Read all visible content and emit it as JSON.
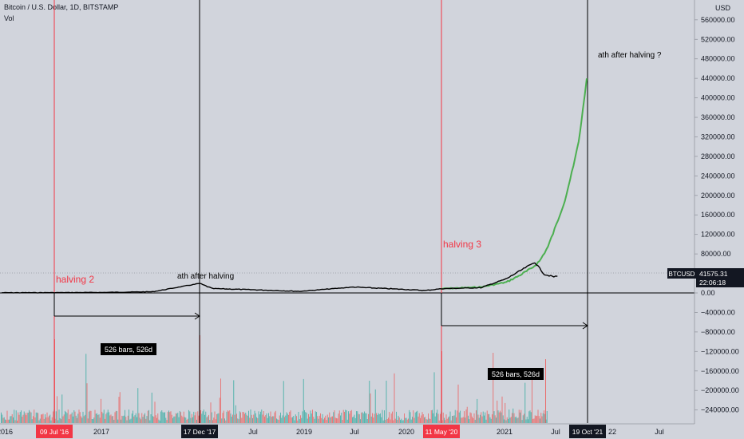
{
  "header": {
    "title": "Bitcoin / U.S. Dollar, 1D, BITSTAMP",
    "indicator": "Vol",
    "currency": "USD"
  },
  "price_label": {
    "symbol": "BTCUSD",
    "price": "41575.31",
    "countdown": "22:06:18"
  },
  "annotations": {
    "halving2": "halving 2",
    "halving3": "halving 3",
    "ath1": "ath after halving",
    "ath2": "ath after halving ?",
    "measure1": "526 bars, 526d",
    "measure2": "526 bars, 526d"
  },
  "x_axis": {
    "ticks": [
      "2016",
      "2017",
      "Jul",
      "2019",
      "Jul",
      "2020",
      "2021",
      "Jul",
      "22",
      "Jul"
    ],
    "highlighted": [
      "09 Jul '16",
      "17 Dec '17",
      "11 May '20",
      "19 Oct '21"
    ]
  },
  "colors": {
    "background": "#d1d4dc",
    "halving_line": "#f23645",
    "ath_line": "#000000",
    "price_line": "#000000",
    "projection_line": "#4caf50",
    "volume_up": "#26a69a",
    "volume_down": "#ef5350"
  },
  "chart_data": {
    "type": "line",
    "title": "Bitcoin / U.S. Dollar, 1D, BITSTAMP",
    "y_unit": "USD",
    "y_ticks": [
      560000,
      520000,
      480000,
      440000,
      400000,
      360000,
      320000,
      280000,
      240000,
      200000,
      160000,
      120000,
      80000,
      40000,
      0,
      -40000,
      -80000,
      -120000,
      -160000,
      -200000,
      -240000
    ],
    "ylim": [
      -262000,
      575000
    ],
    "grid": false,
    "series": [
      {
        "values": [
          [
            "2016-01-01",
            430
          ],
          [
            "2016-07-09",
            650
          ],
          [
            "2017-01-01",
            1000
          ],
          [
            "2017-07-01",
            2500
          ],
          [
            "2017-12-17",
            19500
          ],
          [
            "2018-02-01",
            9000
          ],
          [
            "2018-07-01",
            6500
          ],
          [
            "2018-12-15",
            3300
          ],
          [
            "2019-06-26",
            12000
          ],
          [
            "2019-12-31",
            7200
          ],
          [
            "2020-03-13",
            5000
          ],
          [
            "2020-05-11",
            8600
          ],
          [
            "2020-10-01",
            10800
          ],
          [
            "2021-01-01",
            29000
          ],
          [
            "2021-04-14",
            63000
          ],
          [
            "2021-05-19",
            38000
          ],
          [
            "2021-06-22",
            33000
          ],
          [
            "2021-07-05",
            34000
          ]
        ]
      },
      {
        "values": [
          [
            "2020-05-11",
            8600
          ],
          [
            "2020-10-01",
            12000
          ],
          [
            "2021-01-01",
            22000
          ],
          [
            "2021-02-15",
            35000
          ],
          [
            "2021-04-01",
            50000
          ],
          [
            "2021-05-01",
            65000
          ],
          [
            "2021-06-01",
            95000
          ],
          [
            "2021-07-01",
            140000
          ],
          [
            "2021-08-01",
            190000
          ],
          [
            "2021-09-01",
            260000
          ],
          [
            "2021-09-20",
            310000
          ],
          [
            "2021-10-05",
            375000
          ],
          [
            "2021-10-19",
            440000
          ]
        ]
      }
    ],
    "current_price": 41575.31
  }
}
